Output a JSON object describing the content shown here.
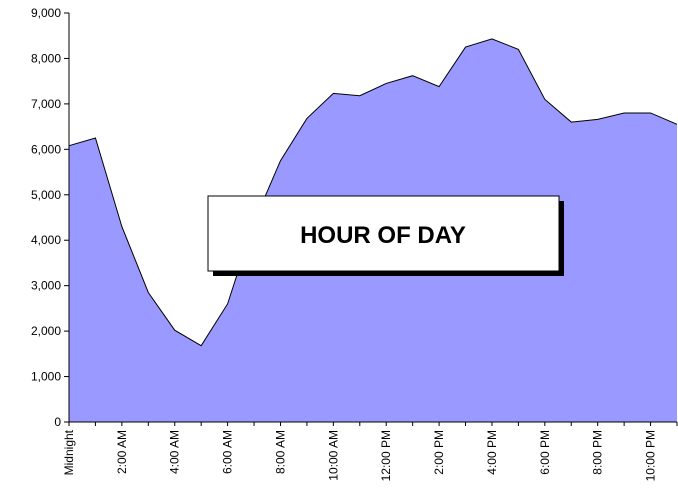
{
  "chart_data": {
    "type": "area",
    "title": "HOUR OF DAY",
    "categories": [
      "Midnight",
      null,
      "2:00 AM",
      null,
      "4:00 AM",
      null,
      "6:00 AM",
      null,
      "8:00 AM",
      null,
      "10:00 AM",
      null,
      "12:00 PM",
      null,
      "2:00 PM",
      null,
      "4:00 PM",
      null,
      "6:00 PM",
      null,
      "8:00 PM",
      null,
      "10:00 PM",
      null
    ],
    "values": [
      6080,
      6250,
      4300,
      2850,
      2020,
      1680,
      2600,
      4400,
      5750,
      6680,
      7230,
      7180,
      7450,
      7620,
      7380,
      8250,
      8430,
      8200,
      7100,
      6600,
      6660,
      6800,
      6800,
      6550
    ],
    "color": "#9999ff",
    "ylim": [
      0,
      9000
    ],
    "yticks": [
      0,
      {
        "value": 1000,
        "label": "1,000"
      },
      {
        "value": 2000,
        "label": "2,000"
      },
      {
        "value": 3000,
        "label": "3,000"
      },
      {
        "value": 4000,
        "label": "4,000"
      },
      {
        "value": 5000,
        "label": "5,000"
      },
      {
        "value": 6000,
        "label": "6,000"
      },
      {
        "value": 7000,
        "label": "7,000"
      },
      {
        "value": 8000,
        "label": "8,000"
      },
      {
        "value": 9000,
        "label": "9,000"
      }
    ]
  }
}
